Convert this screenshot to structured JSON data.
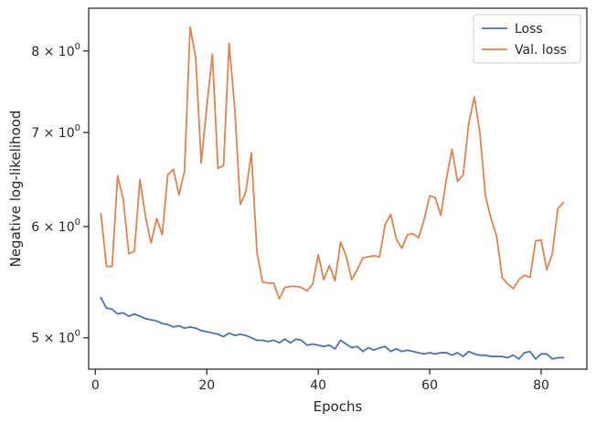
{
  "chart_data": {
    "type": "line",
    "xlabel": "Epochs",
    "ylabel": "Negative log-likelihood",
    "yscale": "log",
    "xlim": [
      -1.2,
      88.2
    ],
    "ylim": [
      4.75,
      8.58
    ],
    "x_ticks": [
      {
        "value": 0,
        "label": "0"
      },
      {
        "value": 20,
        "label": "20"
      },
      {
        "value": 40,
        "label": "40"
      },
      {
        "value": 60,
        "label": "60"
      },
      {
        "value": 80,
        "label": "80"
      }
    ],
    "y_ticks": [
      {
        "value": 5,
        "mantissa": "5",
        "label": "5 × 10^0"
      },
      {
        "value": 6,
        "mantissa": "6",
        "label": "6 × 10^0"
      },
      {
        "value": 7,
        "mantissa": "7",
        "label": "7 × 10^0"
      },
      {
        "value": 8,
        "mantissa": "8",
        "label": "8 × 10^0"
      }
    ],
    "y_tick_multiplier": "×",
    "y_tick_base": "10",
    "y_tick_exponent": "0",
    "grid": false,
    "legend_position": "top-right",
    "x": [
      1,
      2,
      3,
      4,
      5,
      6,
      7,
      8,
      9,
      10,
      11,
      12,
      13,
      14,
      15,
      16,
      17,
      18,
      19,
      20,
      21,
      22,
      23,
      24,
      25,
      26,
      27,
      28,
      29,
      30,
      31,
      32,
      33,
      34,
      35,
      36,
      37,
      38,
      39,
      40,
      41,
      42,
      43,
      44,
      45,
      46,
      47,
      48,
      49,
      50,
      51,
      52,
      53,
      54,
      55,
      56,
      57,
      58,
      59,
      60,
      61,
      62,
      63,
      64,
      65,
      66,
      67,
      68,
      69,
      70,
      71,
      72,
      73,
      74,
      75,
      76,
      77,
      78,
      79,
      80,
      81,
      82,
      83,
      84
    ],
    "series": [
      {
        "name": "Loss",
        "color": "#4c72b0",
        "values": [
          5.34,
          5.25,
          5.24,
          5.2,
          5.21,
          5.18,
          5.2,
          5.18,
          5.16,
          5.15,
          5.14,
          5.12,
          5.11,
          5.09,
          5.1,
          5.08,
          5.09,
          5.08,
          5.06,
          5.05,
          5.04,
          5.03,
          5.01,
          5.04,
          5.02,
          5.03,
          5.02,
          5.0,
          4.98,
          4.98,
          4.97,
          4.98,
          4.96,
          4.99,
          4.96,
          4.99,
          4.98,
          4.94,
          4.95,
          4.94,
          4.93,
          4.94,
          4.91,
          4.98,
          4.95,
          4.92,
          4.93,
          4.89,
          4.92,
          4.9,
          4.92,
          4.93,
          4.89,
          4.91,
          4.89,
          4.9,
          4.89,
          4.88,
          4.87,
          4.88,
          4.87,
          4.88,
          4.88,
          4.86,
          4.88,
          4.85,
          4.89,
          4.87,
          4.86,
          4.86,
          4.85,
          4.85,
          4.85,
          4.84,
          4.86,
          4.83,
          4.88,
          4.89,
          4.83,
          4.87,
          4.87,
          4.83,
          4.84,
          4.84
        ]
      },
      {
        "name": "Val. loss",
        "color": "#dd8452",
        "values": [
          6.13,
          5.62,
          5.62,
          6.52,
          6.28,
          5.74,
          5.76,
          6.48,
          6.1,
          5.84,
          6.08,
          5.92,
          6.53,
          6.59,
          6.32,
          6.57,
          8.32,
          7.92,
          6.66,
          7.3,
          7.96,
          6.6,
          6.63,
          8.1,
          7.3,
          6.22,
          6.35,
          6.77,
          5.75,
          5.48,
          5.47,
          5.47,
          5.33,
          5.43,
          5.44,
          5.44,
          5.43,
          5.4,
          5.46,
          5.73,
          5.5,
          5.63,
          5.49,
          5.85,
          5.72,
          5.5,
          5.59,
          5.7,
          5.71,
          5.72,
          5.71,
          6.02,
          6.12,
          5.88,
          5.79,
          5.92,
          5.93,
          5.89,
          6.07,
          6.31,
          6.29,
          6.11,
          6.49,
          6.81,
          6.46,
          6.53,
          7.1,
          7.42,
          7.0,
          6.31,
          6.08,
          5.91,
          5.52,
          5.46,
          5.42,
          5.5,
          5.54,
          5.52,
          5.86,
          5.87,
          5.59,
          5.74,
          6.18,
          6.24
        ]
      }
    ]
  }
}
